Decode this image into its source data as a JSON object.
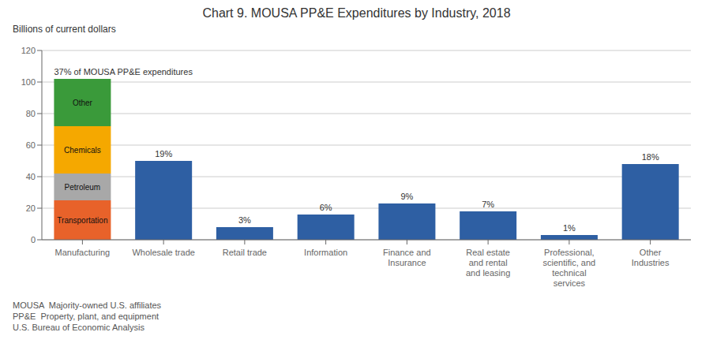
{
  "chart_data": {
    "type": "bar",
    "title": "Chart 9. MOUSA PP&E Expenditures by Industry, 2018",
    "ylabel": "Billions of current dollars",
    "categories": [
      "Manufacturing",
      "Wholesale trade",
      "Retail trade",
      "Information",
      "Finance and\nInsurance",
      "Real estate\nand rental\nand leasing",
      "Professional,\nscientific, and\ntechnical\nservices",
      "Other\nIndustries"
    ],
    "stacked": true,
    "series": [
      {
        "name": "Transportation",
        "color": "#E8622A",
        "values": [
          25,
          null,
          null,
          null,
          null,
          null,
          null,
          null
        ]
      },
      {
        "name": "Petroleum",
        "color": "#A8A8A8",
        "values": [
          17,
          null,
          null,
          null,
          null,
          null,
          null,
          null
        ]
      },
      {
        "name": "Chemicals",
        "color": "#F5A800",
        "values": [
          30,
          null,
          null,
          null,
          null,
          null,
          null,
          null
        ]
      },
      {
        "name": "Other",
        "color": "#3A9A3A",
        "values": [
          30,
          null,
          null,
          null,
          null,
          null,
          null,
          null
        ]
      },
      {
        "color": "#2E5FA3",
        "values": [
          null,
          50,
          8,
          16,
          23,
          18,
          3,
          48
        ]
      }
    ],
    "annotations": [
      {
        "category": "Manufacturing",
        "text": "37% of MOUSA PP&E expenditures"
      },
      {
        "category": "Wholesale trade",
        "text": "19%"
      },
      {
        "category": "Retail trade",
        "text": "3%"
      },
      {
        "category": "Information",
        "text": "6%"
      },
      {
        "category": "Finance and\nInsurance",
        "text": "9%"
      },
      {
        "category": "Real estate\nand rental\nand leasing",
        "text": "7%"
      },
      {
        "category": "Professional,\nscientific, and\ntechnical\nservices",
        "text": "1%"
      },
      {
        "category": "Other\nIndustries",
        "text": "18%"
      }
    ],
    "footnotes": [
      "MOUSA  Majority-owned U.S. affiliates",
      "PP&E  Property, plant, and equipment",
      "U.S. Bureau of Economic Analysis"
    ],
    "ylim": [
      0,
      120
    ],
    "yticks": [
      0,
      20,
      40,
      60,
      80,
      100,
      120
    ],
    "grid": true
  }
}
